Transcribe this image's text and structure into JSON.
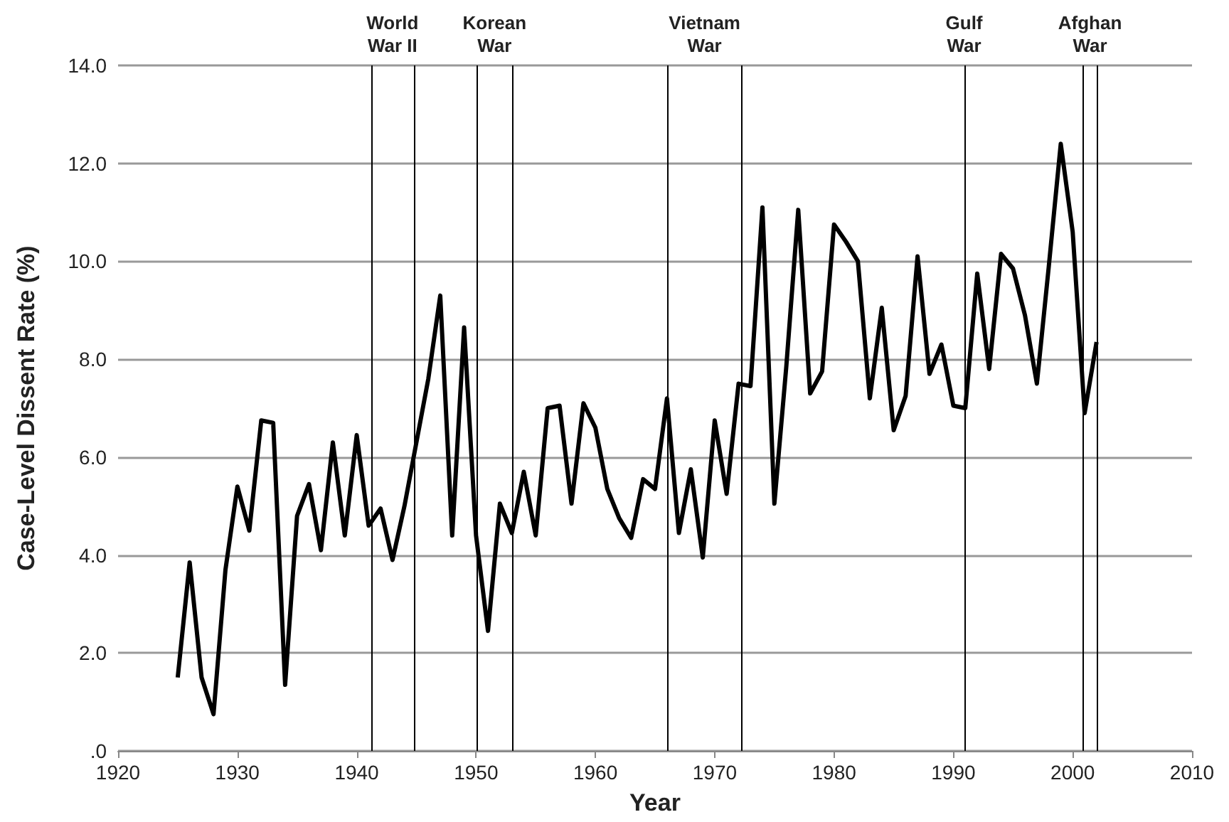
{
  "chart_data": {
    "type": "line",
    "xlabel": "Year",
    "ylabel": "Case-Level Dissent Rate (%)",
    "x": [
      1925,
      1926,
      1927,
      1928,
      1929,
      1930,
      1931,
      1932,
      1933,
      1934,
      1935,
      1936,
      1937,
      1938,
      1939,
      1940,
      1941,
      1942,
      1943,
      1944,
      1945,
      1946,
      1947,
      1948,
      1949,
      1950,
      1951,
      1952,
      1953,
      1954,
      1955,
      1956,
      1957,
      1958,
      1959,
      1960,
      1961,
      1962,
      1963,
      1964,
      1965,
      1966,
      1967,
      1968,
      1969,
      1970,
      1971,
      1972,
      1973,
      1974,
      1975,
      1976,
      1977,
      1978,
      1979,
      1980,
      1981,
      1982,
      1983,
      1984,
      1985,
      1986,
      1987,
      1988,
      1989,
      1990,
      1991,
      1992,
      1993,
      1994,
      1995,
      1996,
      1997,
      1998,
      1999,
      2000,
      2001,
      2002
    ],
    "series": [
      {
        "color": "#000000",
        "values": [
          1.5,
          3.85,
          1.5,
          0.75,
          3.7,
          5.4,
          4.5,
          6.75,
          6.7,
          1.35,
          4.8,
          5.45,
          4.1,
          6.3,
          4.4,
          6.45,
          4.6,
          4.95,
          3.9,
          5.0,
          6.3,
          7.6,
          9.3,
          4.4,
          8.65,
          4.4,
          2.45,
          5.05,
          4.45,
          5.7,
          4.4,
          7.0,
          7.05,
          5.05,
          7.1,
          6.6,
          5.35,
          4.75,
          4.35,
          5.55,
          5.35,
          7.2,
          4.45,
          5.75,
          3.95,
          6.75,
          5.25,
          7.5,
          7.45,
          11.1,
          5.05,
          7.85,
          11.05,
          7.3,
          7.75,
          10.75,
          10.4,
          10.0,
          7.2,
          9.05,
          6.55,
          7.25,
          10.1,
          7.7,
          8.3,
          7.05,
          7.0,
          9.75,
          7.8,
          10.15,
          9.85,
          8.9,
          7.5,
          9.9,
          12.4,
          10.6,
          6.9,
          8.35
        ]
      }
    ],
    "xlim": [
      1920,
      2010
    ],
    "xticks": [
      1920,
      1930,
      1940,
      1950,
      1960,
      1970,
      1980,
      1990,
      2000,
      2010
    ],
    "ylim": [
      0,
      14
    ],
    "yticks": [
      {
        "value": 0,
        "label": ".0"
      },
      {
        "value": 2,
        "label": "2.0"
      },
      {
        "value": 4,
        "label": "4.0"
      },
      {
        "value": 6,
        "label": "6.0"
      },
      {
        "value": 8,
        "label": "8.0"
      },
      {
        "value": 10,
        "label": "10.0"
      },
      {
        "value": 12,
        "label": "12.0"
      },
      {
        "value": 14,
        "label": "14.0"
      }
    ],
    "grid": "y",
    "marker": "none",
    "line_style": "solid",
    "ref_lines": [
      {
        "axis": "x",
        "value": 1941.2,
        "label": "World\nWar II",
        "color": "#000000"
      },
      {
        "axis": "x",
        "value": 1944.8,
        "color": "#000000"
      },
      {
        "axis": "x",
        "value": 1950.1,
        "label": "Korean\nWar",
        "color": "#000000"
      },
      {
        "axis": "x",
        "value": 1953,
        "color": "#000000"
      },
      {
        "axis": "x",
        "value": 1966.1,
        "label": "Vietnam\nWar",
        "color": "#000000"
      },
      {
        "axis": "x",
        "value": 1972.2,
        "color": "#000000"
      },
      {
        "axis": "x",
        "value": 1990.9,
        "label": "Gulf\nWar",
        "color": "#000000"
      },
      {
        "axis": "x",
        "value": 2000.8,
        "label": "Afghan\nWar",
        "color": "#000000"
      },
      {
        "axis": "x",
        "value": 2002.1,
        "color": "#000000"
      }
    ]
  }
}
